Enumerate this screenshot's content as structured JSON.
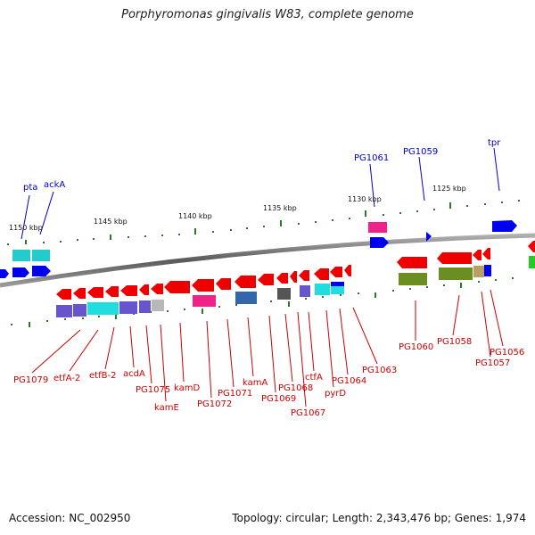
{
  "title": "Porphyromonas gingivalis W83, complete genome",
  "footer": {
    "accession": "Accession: NC_002950",
    "summary": "Topology: circular; Length: 2,343,476 bp; Genes: 1,974"
  },
  "scale_labels": [
    "1150 kbp",
    "1145 kbp",
    "1140 kbp",
    "1135 kbp",
    "1130 kbp",
    "1125 kbp"
  ],
  "labels_top": [
    "pta",
    "ackA",
    "PG1061",
    "PG1059",
    "tpr"
  ],
  "labels_bottom": [
    "PG1079",
    "etfA-2",
    "etfB-2",
    "acdA",
    "PG1075",
    "kamE",
    "kamD",
    "PG1072",
    "PG1071",
    "kamA",
    "PG1069",
    "PG1068",
    "PG1067",
    "ctfA",
    "pyrD",
    "PG1064",
    "PG1063",
    "PG1060",
    "PG1058",
    "PG1057",
    "PG1056"
  ],
  "colors": {
    "forward_label": "#0000cc",
    "reverse_label": "#cc0000",
    "backbone": "#808080",
    "tick": "#2a7a2a"
  }
}
